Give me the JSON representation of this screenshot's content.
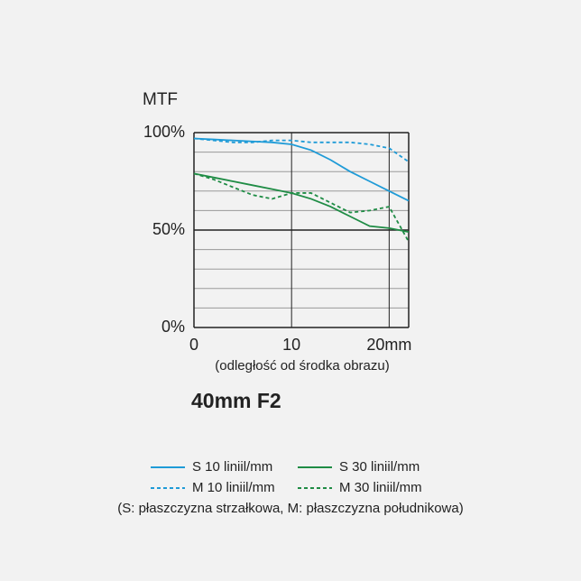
{
  "chart_data": {
    "type": "line",
    "title": "40mm F2",
    "y_label": "MTF",
    "x_label": "(odległość od środka obrazu)",
    "note": "(S: płaszczyzna strzałkowa, M: płaszczyzna południkowa)",
    "x": [
      0,
      2,
      4,
      6,
      8,
      10,
      12,
      14,
      16,
      18,
      20,
      22
    ],
    "series": [
      {
        "name": "S 10 liniil/mm",
        "color": "#1f9bd7",
        "dashed": false,
        "values": [
          97,
          96.5,
          96,
          95.5,
          95,
          94,
          91,
          86,
          80,
          75,
          70,
          65
        ]
      },
      {
        "name": "S 30 liniil/mm",
        "color": "#1f8c45",
        "dashed": false,
        "values": [
          79,
          77,
          75,
          73,
          71,
          69,
          66,
          62,
          57,
          52,
          51,
          49
        ]
      },
      {
        "name": "M 10 liniil/mm",
        "color": "#1f9bd7",
        "dashed": true,
        "values": [
          97,
          96,
          95,
          95,
          96,
          96,
          95,
          95,
          95,
          94,
          92,
          85
        ]
      },
      {
        "name": "M 30 liniil/mm",
        "color": "#1f8c45",
        "dashed": true,
        "values": [
          79,
          76,
          72,
          68,
          66,
          69,
          69,
          64,
          59,
          60,
          62,
          44
        ]
      }
    ],
    "xlim": [
      0,
      22
    ],
    "ylim": [
      0,
      100
    ],
    "xticks": [
      0,
      10,
      {
        "value": 20,
        "label": "20mm"
      }
    ],
    "yticks": [
      {
        "value": 0,
        "label": "0%"
      },
      {
        "value": 50,
        "label": "50%"
      },
      {
        "value": 100,
        "label": "100%"
      }
    ],
    "minor_yticks": [
      10,
      20,
      30,
      40,
      60,
      70,
      80,
      90
    ],
    "grid": true
  }
}
